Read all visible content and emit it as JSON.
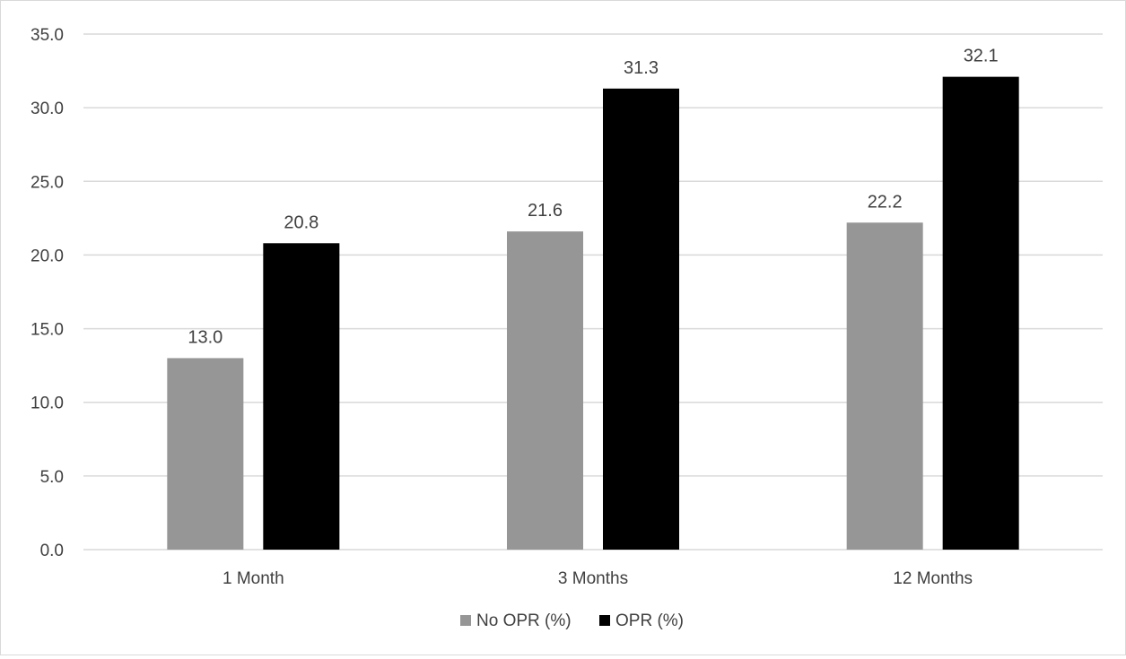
{
  "chart_data": {
    "type": "bar",
    "title": "",
    "xlabel": "",
    "ylabel": "",
    "categories": [
      "1 Month",
      "3 Months",
      "12 Months"
    ],
    "series": [
      {
        "name": "No OPR (%)",
        "values": [
          13.0,
          21.6,
          22.2
        ],
        "color": "#969696"
      },
      {
        "name": "OPR (%)",
        "values": [
          20.8,
          31.3,
          32.1
        ],
        "color": "#000000"
      }
    ],
    "ylim": [
      0,
      35
    ],
    "yticks": [
      "0.0",
      "5.0",
      "10.0",
      "15.0",
      "20.0",
      "25.0",
      "30.0",
      "35.0"
    ],
    "data_labels": [
      [
        "13.0",
        "21.6",
        "22.2"
      ],
      [
        "20.8",
        "31.3",
        "32.1"
      ]
    ],
    "grid": true,
    "legend": "bottom-center",
    "text_color": "#404040",
    "grid_color": "#d9d9d9"
  }
}
